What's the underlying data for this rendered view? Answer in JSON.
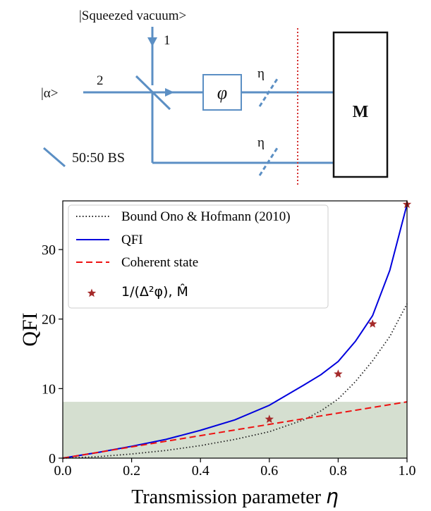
{
  "diagram": {
    "top_label": "|Squeezed vacuum>",
    "port1_label": "1",
    "port2_label": "2",
    "alpha_label": "|α>",
    "phase_label": "φ",
    "loss_label_top": "η",
    "loss_label_bottom": "η",
    "detector_label": "M",
    "bs_legend_label": "50:50 BS",
    "beam_color": "#5b8fc4"
  },
  "chart_data": {
    "type": "line",
    "xlabel_text": "Transmission parameter ",
    "xlabel_symbol": "η",
    "ylabel": "QFI",
    "xlim": [
      0.0,
      1.0
    ],
    "ylim": [
      0,
      37
    ],
    "xticks": [
      0.0,
      0.2,
      0.4,
      0.6,
      0.8,
      1.0
    ],
    "xtick_labels": [
      "0.0",
      "0.2",
      "0.4",
      "0.6",
      "0.8",
      "1.0"
    ],
    "yticks": [
      0,
      10,
      20,
      30
    ],
    "ytick_labels": [
      "0",
      "10",
      "20",
      "30"
    ],
    "grid": false,
    "legend_position": "top-left",
    "shaded_region": {
      "y_from": 0,
      "y_to": 8.1,
      "color": "#d5dfd0"
    },
    "series": [
      {
        "name": "Bound Ono & Hofmann (2010)",
        "style": "dotted",
        "color": "#222222",
        "x": [
          0.0,
          0.1,
          0.2,
          0.3,
          0.4,
          0.5,
          0.6,
          0.7,
          0.75,
          0.8,
          0.85,
          0.9,
          0.95,
          1.0
        ],
        "y": [
          0.0,
          0.2,
          0.6,
          1.1,
          1.8,
          2.7,
          3.8,
          5.5,
          6.8,
          8.5,
          11.0,
          14.0,
          17.5,
          22.2
        ]
      },
      {
        "name": "QFI",
        "style": "solid",
        "color": "#0000dd",
        "x": [
          0.0,
          0.1,
          0.2,
          0.3,
          0.4,
          0.5,
          0.6,
          0.7,
          0.75,
          0.8,
          0.85,
          0.9,
          0.95,
          1.0
        ],
        "y": [
          0.0,
          0.8,
          1.7,
          2.7,
          4.0,
          5.5,
          7.6,
          10.5,
          12.0,
          13.9,
          16.8,
          20.5,
          27.0,
          36.5
        ]
      },
      {
        "name": "Coherent state",
        "style": "dashed",
        "color": "#ee1111",
        "x": [
          0.0,
          1.0
        ],
        "y": [
          0.0,
          8.1
        ]
      },
      {
        "name": "1/(Δ²φ), M̂",
        "style": "markers",
        "marker": "star",
        "color": "#a52a2a",
        "x": [
          0.6,
          0.8,
          0.9,
          1.0
        ],
        "y": [
          5.6,
          12.1,
          19.3,
          36.5
        ]
      }
    ]
  }
}
